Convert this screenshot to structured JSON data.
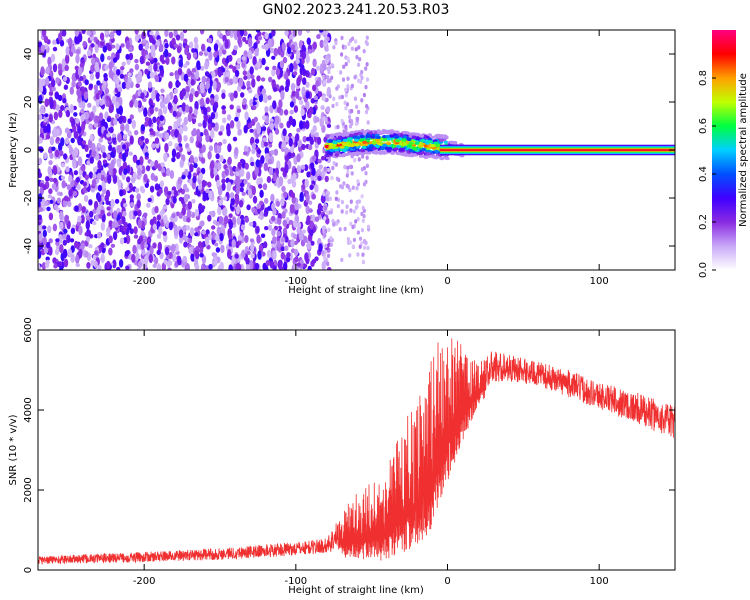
{
  "figure_title": "GN02.2023.241.20.53.R03",
  "chart_data": [
    {
      "type": "heatmap",
      "xlabel": "Height of straight line (km)",
      "ylabel": "Frequency (Hz)",
      "xlim": [
        -270,
        150
      ],
      "ylim": [
        -50,
        50
      ],
      "x_ticks": [
        -200,
        -100,
        0,
        100
      ],
      "y_ticks": [
        -40,
        -20,
        0,
        20,
        40
      ],
      "colorbar": {
        "label": "Normalized spectral amplitude",
        "range": [
          0,
          1
        ],
        "ticks": [
          "0.0",
          "0.2",
          "0.4",
          "0.6",
          "0.8"
        ],
        "colors": [
          "#ffffff",
          "#c8a8f8",
          "#8a2be2",
          "#3f00ff",
          "#0050ff",
          "#00d0ff",
          "#00ff40",
          "#c0ff00",
          "#ffa000",
          "#ff0000",
          "#ff0080"
        ]
      },
      "regions": [
        {
          "x_range": [
            -270,
            -78
          ],
          "freq_range": [
            -50,
            50
          ],
          "amplitude": "0.1-0.3 (broadband noise)"
        },
        {
          "x_range": [
            -80,
            10
          ],
          "freq_center": [
            0,
            4
          ],
          "freq_width": 6,
          "amplitude": "0.3-0.9 (signal band)"
        },
        {
          "x_range": [
            0,
            150
          ],
          "freq_center": 0,
          "freq_width": 2,
          "amplitude": "0.9-1.0 (narrow tone)"
        }
      ]
    },
    {
      "type": "line",
      "xlabel": "Height of straight line (km)",
      "ylabel": "SNR (10 * v/v)",
      "xlim": [
        -270,
        150
      ],
      "ylim": [
        0,
        6000
      ],
      "x_ticks": [
        -200,
        -100,
        0,
        100
      ],
      "y_ticks": [
        0,
        2000,
        4000,
        6000
      ],
      "color": "#f03030",
      "envelope": {
        "x": [
          -270,
          -200,
          -150,
          -100,
          -80,
          -65,
          -50,
          -40,
          -30,
          -20,
          -15,
          -10,
          -5,
          0,
          10,
          20,
          30,
          40,
          60,
          80,
          100,
          120,
          150
        ],
        "low": [
          100,
          150,
          200,
          300,
          350,
          300,
          250,
          200,
          400,
          600,
          800,
          1000,
          1600,
          2200,
          3200,
          4100,
          4500,
          4600,
          4500,
          4200,
          3900,
          3600,
          3100
        ],
        "high": [
          350,
          450,
          550,
          700,
          800,
          1700,
          2300,
          2600,
          3700,
          4200,
          5100,
          5600,
          5800,
          6000,
          5600,
          5200,
          5500,
          5400,
          5200,
          5000,
          4700,
          4500,
          4100
        ]
      }
    }
  ]
}
